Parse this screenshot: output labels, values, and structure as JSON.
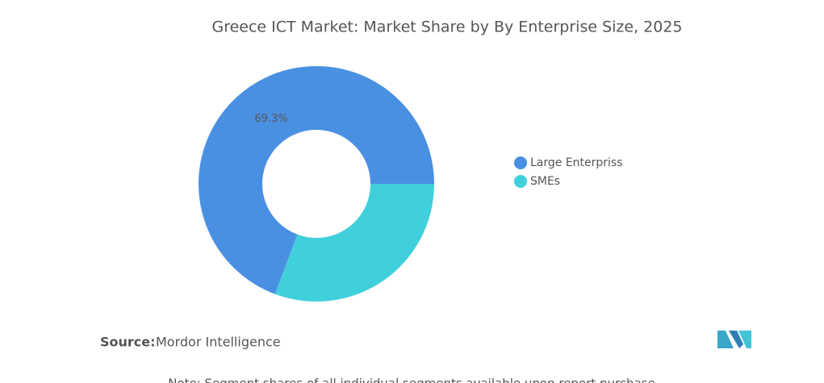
{
  "chart_data": {
    "type": "donut",
    "title": "Greece ICT Market: Market Share by By Enterprise Size, 2025",
    "categories": [
      "Large Enterpriss",
      "SMEs"
    ],
    "values": [
      69.3,
      30.7
    ],
    "value_labels": [
      "69.3%",
      null
    ],
    "colors": [
      "#4a90e2",
      "#40d0dc"
    ],
    "legend": "right"
  },
  "footer": {
    "source_label": "Source:",
    "source": "Mordor Intelligence",
    "note": "Note: Segment shares of all individual segments available upon report purchase"
  }
}
